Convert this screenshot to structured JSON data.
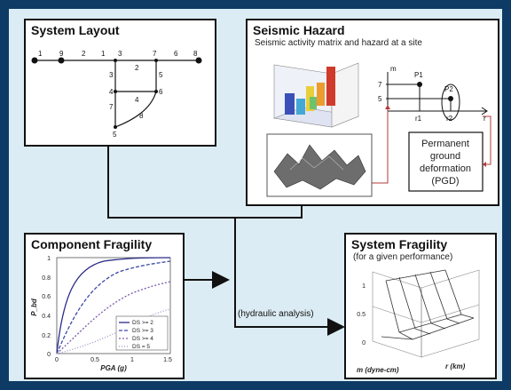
{
  "system_layout": {
    "title": "System Layout",
    "node_labels": [
      "1",
      "9",
      "2",
      "1",
      "3",
      "7",
      "6",
      "8",
      "2",
      "3",
      "5",
      "4",
      "6",
      "4",
      "7",
      "8",
      "5"
    ]
  },
  "seismic_hazard": {
    "title": "Seismic Hazard",
    "subtitle": "Seismic activity matrix and hazard at a site",
    "pgd_label_lines": [
      "Permanent",
      "ground",
      "deformation",
      "(PGD)"
    ],
    "graph_labels": {
      "m": "m",
      "r1": "r1",
      "r2": "r2",
      "r": "r",
      "p1": "P1",
      "p2": "P2",
      "y7": "7",
      "y5": "5"
    }
  },
  "component_fragility": {
    "title": "Component Fragility",
    "xlabel": "PGA (g)",
    "ylabel": "P_bd",
    "ytick_labels": [
      "1",
      "0.8",
      "0.6",
      "0.4",
      "0.2",
      "0"
    ],
    "xtick_labels": [
      "0",
      "0.5",
      "1",
      "1.5"
    ],
    "legend": [
      "DS >= 2",
      "DS >= 3",
      "DS >= 4",
      "DS = 5"
    ]
  },
  "system_fragility": {
    "title": "System Fragility",
    "subtitle": "(for a given performance)",
    "ytick_labels": [
      "1",
      "0.5",
      "0"
    ],
    "xlabel_left": "m (dyne-cm)",
    "xlabel_right": "r (km)"
  },
  "connector_label": "(hydraulic analysis)",
  "colors": {
    "background": "#0d3b66",
    "inner": "#dcecf4",
    "border": "#111111",
    "accent_red": "#b23b3b"
  }
}
